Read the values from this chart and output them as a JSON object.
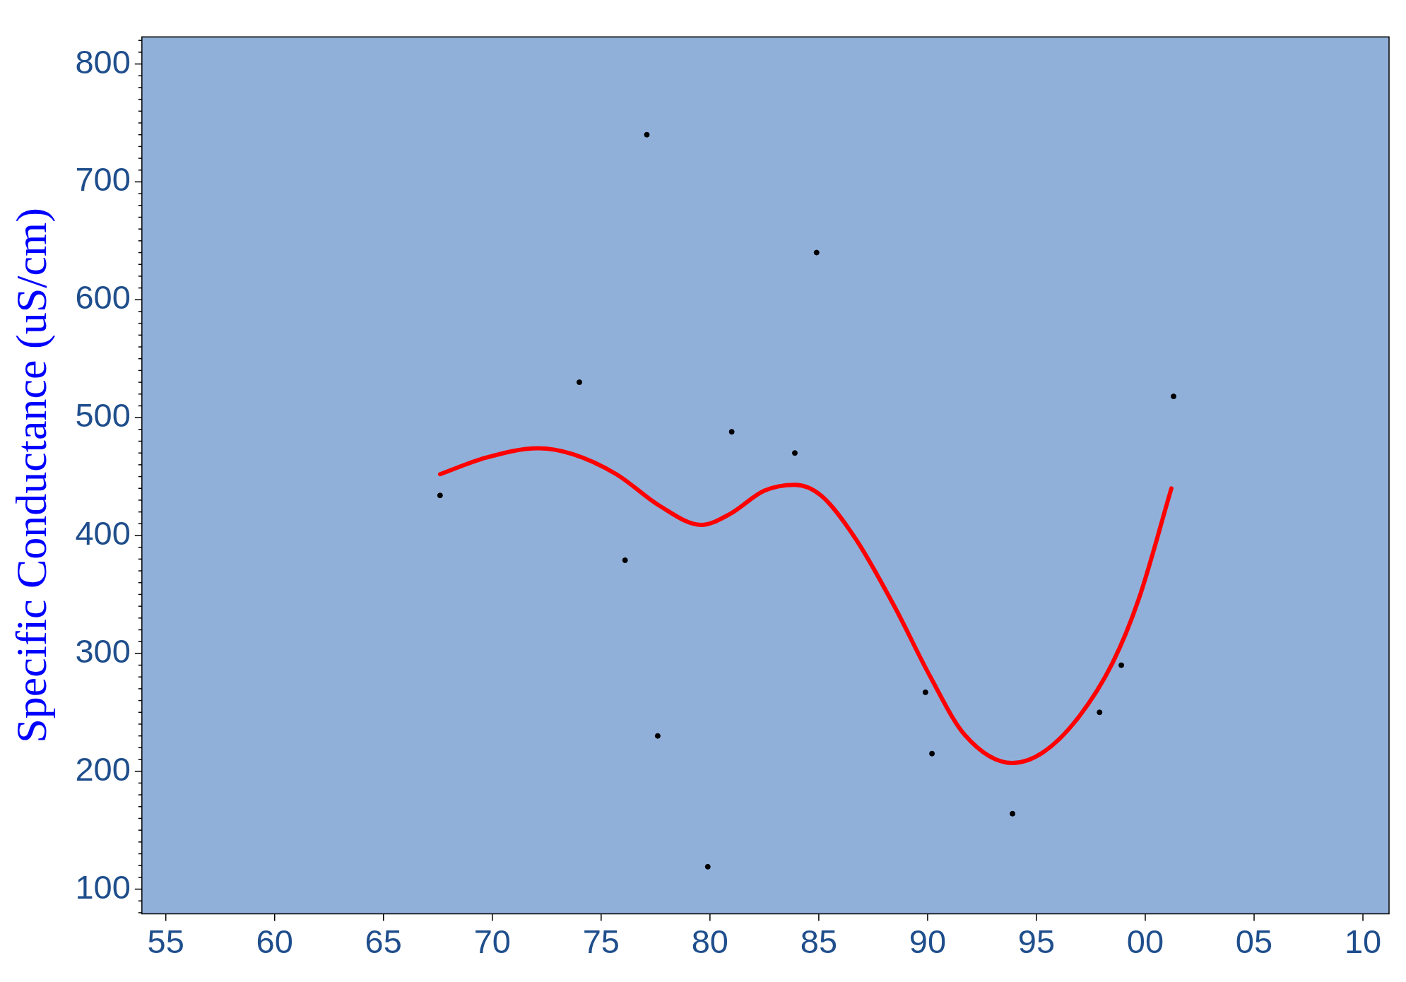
{
  "chart_data": {
    "type": "scatter",
    "ylabel": "Specific Conductance (uS/cm)",
    "marker": "circle",
    "grid": false,
    "xlim": [
      1953.9,
      2011.2
    ],
    "xticks": [
      {
        "value": 1955,
        "label": "55"
      },
      {
        "value": 1960,
        "label": "60"
      },
      {
        "value": 1965,
        "label": "65"
      },
      {
        "value": 1970,
        "label": "70"
      },
      {
        "value": 1975,
        "label": "75"
      },
      {
        "value": 1980,
        "label": "80"
      },
      {
        "value": 1985,
        "label": "85"
      },
      {
        "value": 1990,
        "label": "90"
      },
      {
        "value": 1995,
        "label": "95"
      },
      {
        "value": 2000,
        "label": "00"
      },
      {
        "value": 2005,
        "label": "05"
      },
      {
        "value": 2010,
        "label": "10"
      }
    ],
    "ylim": [
      79,
      823
    ],
    "yticks": [
      {
        "value": 80,
        "label": null
      },
      {
        "value": 90,
        "label": null
      },
      100,
      {
        "value": 110,
        "label": null
      },
      {
        "value": 120,
        "label": null
      },
      {
        "value": 130,
        "label": null
      },
      {
        "value": 140,
        "label": null
      },
      {
        "value": 150,
        "label": null
      },
      {
        "value": 160,
        "label": null
      },
      {
        "value": 170,
        "label": null
      },
      {
        "value": 180,
        "label": null
      },
      {
        "value": 190,
        "label": null
      },
      200,
      {
        "value": 210,
        "label": null
      },
      {
        "value": 220,
        "label": null
      },
      {
        "value": 230,
        "label": null
      },
      {
        "value": 240,
        "label": null
      },
      {
        "value": 250,
        "label": null
      },
      {
        "value": 260,
        "label": null
      },
      {
        "value": 270,
        "label": null
      },
      {
        "value": 280,
        "label": null
      },
      {
        "value": 290,
        "label": null
      },
      300,
      {
        "value": 310,
        "label": null
      },
      {
        "value": 320,
        "label": null
      },
      {
        "value": 330,
        "label": null
      },
      {
        "value": 340,
        "label": null
      },
      {
        "value": 350,
        "label": null
      },
      {
        "value": 360,
        "label": null
      },
      {
        "value": 370,
        "label": null
      },
      {
        "value": 380,
        "label": null
      },
      {
        "value": 390,
        "label": null
      },
      400,
      {
        "value": 410,
        "label": null
      },
      {
        "value": 420,
        "label": null
      },
      {
        "value": 430,
        "label": null
      },
      {
        "value": 440,
        "label": null
      },
      {
        "value": 450,
        "label": null
      },
      {
        "value": 460,
        "label": null
      },
      {
        "value": 470,
        "label": null
      },
      {
        "value": 480,
        "label": null
      },
      {
        "value": 490,
        "label": null
      },
      500,
      {
        "value": 510,
        "label": null
      },
      {
        "value": 520,
        "label": null
      },
      {
        "value": 530,
        "label": null
      },
      {
        "value": 540,
        "label": null
      },
      {
        "value": 550,
        "label": null
      },
      {
        "value": 560,
        "label": null
      },
      {
        "value": 570,
        "label": null
      },
      {
        "value": 580,
        "label": null
      },
      {
        "value": 590,
        "label": null
      },
      600,
      {
        "value": 610,
        "label": null
      },
      {
        "value": 620,
        "label": null
      },
      {
        "value": 630,
        "label": null
      },
      {
        "value": 640,
        "label": null
      },
      {
        "value": 650,
        "label": null
      },
      {
        "value": 660,
        "label": null
      },
      {
        "value": 670,
        "label": null
      },
      {
        "value": 680,
        "label": null
      },
      {
        "value": 690,
        "label": null
      },
      700,
      {
        "value": 710,
        "label": null
      },
      {
        "value": 720,
        "label": null
      },
      {
        "value": 730,
        "label": null
      },
      {
        "value": 740,
        "label": null
      },
      {
        "value": 750,
        "label": null
      },
      {
        "value": 760,
        "label": null
      },
      {
        "value": 770,
        "label": null
      },
      {
        "value": 780,
        "label": null
      },
      {
        "value": 790,
        "label": null
      },
      800,
      {
        "value": 810,
        "label": null
      },
      {
        "value": 820,
        "label": null
      }
    ],
    "series": [
      {
        "color": "#000000",
        "x": [
          1967.6,
          1974.0,
          1976.1,
          1977.1,
          1977.6,
          1979.9,
          1981.0,
          1983.9,
          1984.9,
          1989.9,
          1990.2,
          1993.9,
          1997.9,
          1998.9,
          2001.3
        ],
        "values": [
          434,
          530,
          379,
          740,
          230,
          119,
          488,
          470,
          640,
          267,
          215,
          164,
          250,
          290,
          518
        ]
      },
      {
        "type": "line",
        "color": "#ff0000",
        "marker": "none",
        "x": [
          1967.6,
          1969.7,
          1972.1,
          1973.7,
          1975.7,
          1977.7,
          1979.6,
          1980.9,
          1982.5,
          1983.9,
          1985.1,
          1986.7,
          1988.5,
          1990.1,
          1991.7,
          1993.9,
          1995.3,
          1996.9,
          1998.5,
          1999.7,
          2001.2
        ],
        "values": [
          452,
          466,
          474,
          469,
          452,
          425,
          409,
          418,
          438,
          443,
          434,
          397,
          339,
          281,
          231,
          207,
          216,
          245,
          292,
          346,
          440
        ]
      }
    ]
  }
}
